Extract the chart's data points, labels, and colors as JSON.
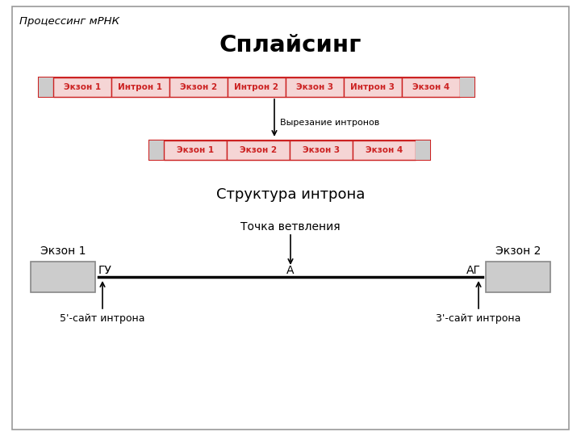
{
  "title": "Сплайсинг",
  "subtitle": "Процессинг мРНК",
  "exon_fill": "#f5d5d5",
  "exon_border": "#cc2222",
  "exon_text_color": "#cc2222",
  "gray_fill": "#cccccc",
  "gray_border": "#888888",
  "cutting_label": "Вырезание интронов",
  "intron_structure_label": "Структура интрона",
  "branch_point_label": "Точка ветвления",
  "exon1_label": "Экзон 1",
  "exon2_label": "Экзон 2",
  "gu_label": "ГУ",
  "ag_label": "АГ",
  "a_label": "А",
  "five_prime_label": "5'-сайт интрона",
  "three_prime_label": "3'-сайт интрона",
  "background": "#ffffff"
}
